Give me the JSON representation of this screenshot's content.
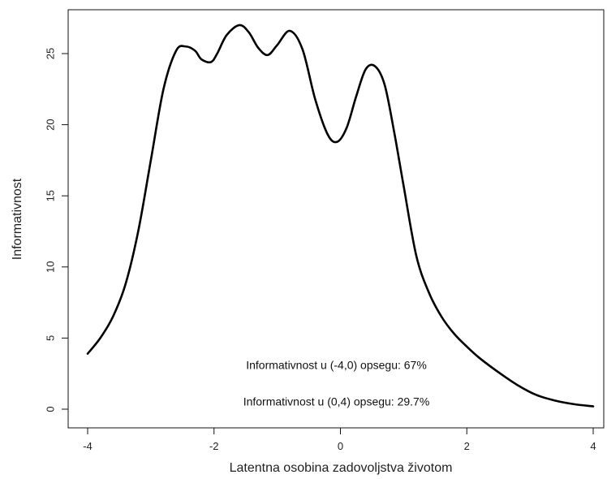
{
  "chart_data": {
    "type": "line",
    "title": "",
    "xlabel": "Latentna osobina zadovoljstva životom",
    "ylabel": "Informativnost",
    "xlim": [
      -4,
      4
    ],
    "ylim": [
      0,
      27.5
    ],
    "x_ticks": [
      -4,
      -2,
      0,
      2,
      4
    ],
    "y_ticks": [
      0,
      5,
      10,
      15,
      20,
      25
    ],
    "grid": false,
    "series": [
      {
        "x": [
          -4.0,
          -3.8,
          -3.6,
          -3.4,
          -3.2,
          -3.0,
          -2.8,
          -2.6,
          -2.45,
          -2.3,
          -2.2,
          -2.05,
          -1.95,
          -1.8,
          -1.6,
          -1.45,
          -1.3,
          -1.15,
          -1.0,
          -0.8,
          -0.6,
          -0.4,
          -0.2,
          -0.05,
          0.1,
          0.25,
          0.4,
          0.55,
          0.7,
          0.85,
          1.0,
          1.2,
          1.4,
          1.6,
          1.8,
          2.0,
          2.2,
          2.5,
          2.8,
          3.1,
          3.4,
          3.7,
          4.0
        ],
        "y": [
          3.9,
          5.0,
          6.5,
          8.8,
          12.5,
          17.5,
          22.5,
          25.2,
          25.5,
          25.2,
          24.6,
          24.4,
          25.0,
          26.3,
          27.0,
          26.5,
          25.4,
          24.9,
          25.6,
          26.6,
          25.3,
          21.8,
          19.3,
          18.8,
          19.8,
          22.0,
          23.9,
          24.1,
          22.8,
          19.5,
          15.7,
          10.8,
          8.2,
          6.5,
          5.3,
          4.4,
          3.6,
          2.6,
          1.7,
          1.0,
          0.6,
          0.35,
          0.2
        ]
      }
    ],
    "annotations": [
      {
        "text": "Informativnost u (-4,0) opsegu: 67%",
        "x": 0,
        "y": 3.1
      },
      {
        "text": "Informativnost u (0,4) opsegu: 29.7%",
        "x": 0,
        "y": 0.55
      }
    ]
  }
}
